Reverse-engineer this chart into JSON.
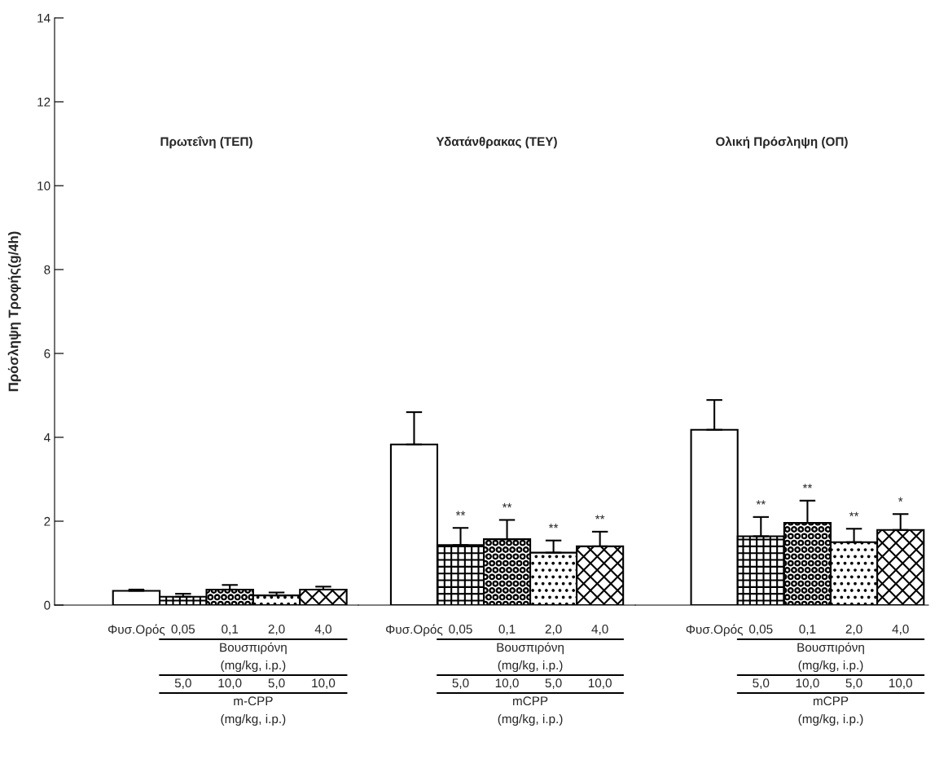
{
  "chart_data": [
    {
      "type": "bar",
      "title": "Πρωτεΐνη (ΤΕΠ)",
      "ylabel": "Πρόσληψη Τροφής(g/4h)",
      "categories": [
        "Φυσ.Ορός",
        "0,05",
        "0,1",
        "2,0",
        "4,0"
      ],
      "values": [
        0.34,
        0.2,
        0.37,
        0.23,
        0.37
      ],
      "errors": [
        0.03,
        0.07,
        0.11,
        0.07,
        0.07
      ],
      "colors": [
        "#ffffff",
        "#000000",
        "#000000",
        "#000000",
        "#000000"
      ],
      "ylim": [
        0,
        14
      ],
      "yticks": [
        0,
        2,
        4,
        6,
        8,
        10,
        12,
        14
      ],
      "annotations": [
        "Βουσπιρόνη",
        "(mg/kg, i.p.)",
        "5,0",
        "10,0",
        "5,0",
        "10,0",
        "m-CPP",
        "(mg/kg, i.p.)"
      ]
    },
    {
      "type": "bar",
      "title": "Υδατάνθρακας (ΤΕΥ)",
      "categories": [
        "Φυσ.Ορός",
        "0,05",
        "0,1",
        "2,0",
        "4,0"
      ],
      "values": [
        3.83,
        1.43,
        1.57,
        1.25,
        1.4
      ],
      "errors": [
        0.77,
        0.41,
        0.46,
        0.29,
        0.35
      ],
      "value_labels": [
        null,
        "**",
        "**",
        "**",
        "**"
      ],
      "colors": [
        "#ffffff",
        "#000000",
        "#000000",
        "#000000",
        "#000000"
      ],
      "ylim": [
        0,
        14
      ],
      "tick_labels": "x",
      "annotations": [
        "Βουσπιρόνη",
        "(mg/kg, i.p.)",
        "5,0",
        "10,0",
        "5,0",
        "10,0",
        "mCPP",
        "(mg/kg, i.p.)"
      ]
    },
    {
      "type": "bar",
      "title": "Ολική Πρόσληψη (ΟΠ)",
      "categories": [
        "Φυσ.Ορός",
        "0,05",
        "0,1",
        "2,0",
        "4,0"
      ],
      "values": [
        4.18,
        1.64,
        1.96,
        1.5,
        1.79
      ],
      "errors": [
        0.71,
        0.46,
        0.53,
        0.32,
        0.38
      ],
      "value_labels": [
        null,
        "**",
        "**",
        "**",
        "*"
      ],
      "colors": [
        "#ffffff",
        "#000000",
        "#000000",
        "#000000",
        "#000000"
      ],
      "ylim": [
        0,
        14
      ],
      "tick_labels": "x",
      "annotations": [
        "Βουσπιρόνη",
        "(mg/kg, i.p.)",
        "5,0",
        "10,0",
        "5,0",
        "10,0",
        "mCPP",
        "(mg/kg, i.p.)"
      ]
    }
  ]
}
